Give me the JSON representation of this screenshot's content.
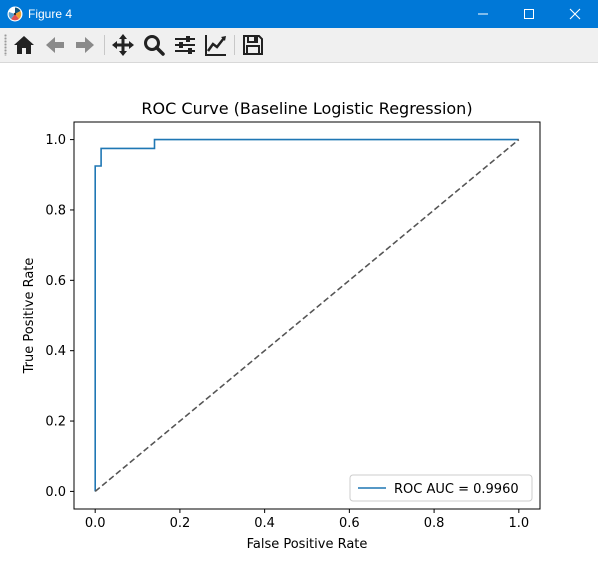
{
  "window": {
    "title": "Figure 4",
    "controls": [
      "minimize-icon",
      "maximize-icon",
      "close-icon"
    ]
  },
  "toolbar": {
    "tools": [
      "home-icon",
      "back-arrow-icon",
      "forward-arrow-icon",
      "pan-icon",
      "zoom-icon",
      "configure-subplots-icon",
      "edit-axis-icon",
      "save-icon"
    ]
  },
  "colors": {
    "titlebar": "#0078d7",
    "roc_line": "#1f77b4",
    "diagonal": "#555555"
  },
  "chart_data": {
    "type": "line",
    "title": "ROC Curve (Baseline Logistic Regression)",
    "xlabel": "False Positive Rate",
    "ylabel": "True Positive Rate",
    "xlim": [
      -0.05,
      1.05
    ],
    "ylim": [
      -0.05,
      1.05
    ],
    "xticks": [
      "0.0",
      "0.2",
      "0.4",
      "0.6",
      "0.8",
      "1.0"
    ],
    "yticks": [
      "0.0",
      "0.2",
      "0.4",
      "0.6",
      "0.8",
      "1.0"
    ],
    "grid": false,
    "legend_position": "lower-right",
    "series": [
      {
        "name": "ROC AUC = 0.9960",
        "style": "solid",
        "x": [
          0.0,
          0.0,
          0.0,
          0.0,
          0.014,
          0.014,
          0.14,
          0.14,
          1.0
        ],
        "y": [
          0.0,
          0.925,
          0.925,
          0.925,
          0.925,
          0.975,
          0.975,
          1.0,
          1.0
        ]
      },
      {
        "style": "dashed",
        "x": [
          0.0,
          1.0
        ],
        "y": [
          0.0,
          1.0
        ]
      }
    ]
  }
}
